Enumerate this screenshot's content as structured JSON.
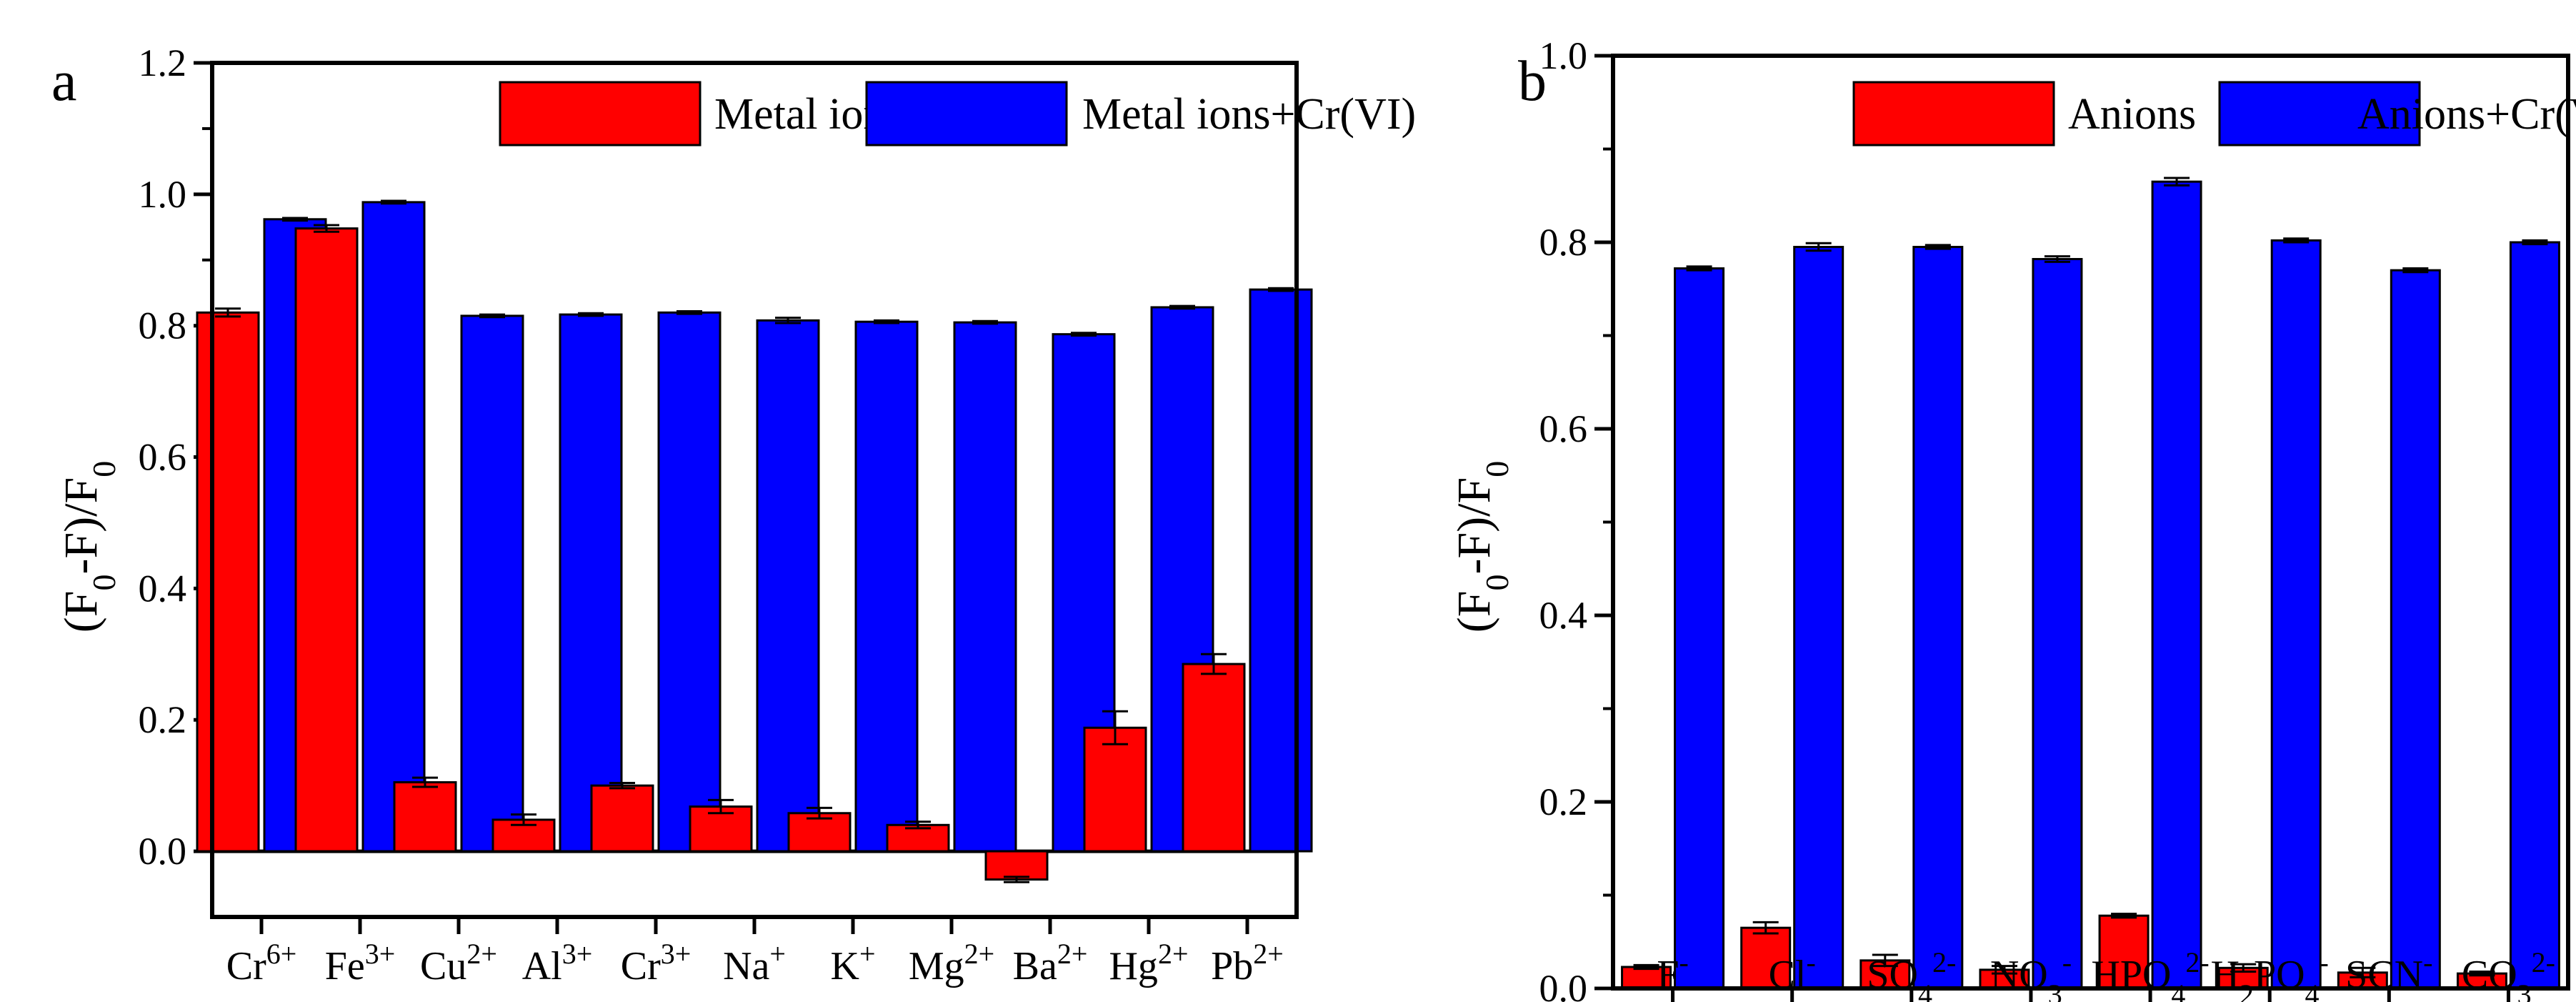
{
  "colors": {
    "series1": "#ff0000",
    "series2": "#0000ff",
    "axis": "#000000"
  },
  "chart_data": [
    {
      "type": "bar",
      "panel": "a",
      "ylabel": "(F0-F)/F0",
      "ylim": [
        -0.1,
        1.2
      ],
      "yticks": [
        0.0,
        0.2,
        0.4,
        0.6,
        0.8,
        1.0,
        1.2
      ],
      "ytick_labels": [
        "0.0",
        "0.2",
        "0.4",
        "0.6",
        "0.8",
        "1.0",
        "1.2"
      ],
      "legend_position": "top-right",
      "categories": [
        {
          "base": "Cr",
          "sup": "6+"
        },
        {
          "base": "Fe",
          "sup": "3+"
        },
        {
          "base": "Cu",
          "sup": "2+"
        },
        {
          "base": "Al",
          "sup": "3+"
        },
        {
          "base": "Cr",
          "sup": "3+"
        },
        {
          "base": "Na",
          "sup": "+"
        },
        {
          "base": "K",
          "sup": "+"
        },
        {
          "base": "Mg",
          "sup": "2+"
        },
        {
          "base": "Ba",
          "sup": "2+"
        },
        {
          "base": "Hg",
          "sup": "2+"
        },
        {
          "base": "Pb",
          "sup": "2+"
        }
      ],
      "series": [
        {
          "name": "Metal ions",
          "color": "#ff0000",
          "values": [
            0.82,
            0.948,
            0.105,
            0.048,
            0.1,
            0.068,
            0.058,
            0.04,
            -0.043,
            0.188,
            0.285
          ],
          "errors": [
            0.006,
            0.005,
            0.007,
            0.008,
            0.004,
            0.01,
            0.008,
            0.005,
            0.004,
            0.025,
            0.015
          ]
        },
        {
          "name": "Metal ions+Cr(VI)",
          "color": "#0000ff",
          "values": [
            0.962,
            0.988,
            0.815,
            0.817,
            0.82,
            0.808,
            0.806,
            0.805,
            0.787,
            0.828,
            0.855
          ],
          "errors": [
            0.002,
            0.002,
            0.002,
            0.002,
            0.002,
            0.004,
            0.002,
            0.002,
            0.002,
            0.002,
            0.002
          ]
        }
      ]
    },
    {
      "type": "bar",
      "panel": "b",
      "ylabel": "(F0-F)/F0",
      "ylim": [
        0.0,
        1.0
      ],
      "yticks": [
        0.0,
        0.2,
        0.4,
        0.6,
        0.8,
        1.0
      ],
      "ytick_labels": [
        "0.0",
        "0.2",
        "0.4",
        "0.6",
        "0.8",
        "1.0"
      ],
      "legend_position": "top-right",
      "categories": [
        [
          {
            "t": "F"
          },
          {
            "t": "-",
            "p": "sup"
          }
        ],
        [
          {
            "t": "Cl"
          },
          {
            "t": "-",
            "p": "sup"
          }
        ],
        [
          {
            "t": "SO"
          },
          {
            "t": "4",
            "p": "sub"
          },
          {
            "t": "2-",
            "p": "sup"
          }
        ],
        [
          {
            "t": "NO"
          },
          {
            "t": "3",
            "p": "sub"
          },
          {
            "t": "-",
            "p": "sup"
          }
        ],
        [
          {
            "t": "HPO"
          },
          {
            "t": "4",
            "p": "sub"
          },
          {
            "t": "2-",
            "p": "sup"
          }
        ],
        [
          {
            "t": "H"
          },
          {
            "t": "2",
            "p": "sub"
          },
          {
            "t": "PO"
          },
          {
            "t": "4",
            "p": "sub"
          },
          {
            "t": "-",
            "p": "sup"
          }
        ],
        [
          {
            "t": "SCN"
          },
          {
            "t": "-",
            "p": "sup"
          }
        ],
        [
          {
            "t": "CO"
          },
          {
            "t": "3",
            "p": "sub"
          },
          {
            "t": "2-",
            "p": "sup"
          }
        ]
      ],
      "series": [
        {
          "name": "Anions",
          "color": "#ff0000",
          "values": [
            0.023,
            0.065,
            0.03,
            0.02,
            0.078,
            0.022,
            0.017,
            0.016
          ],
          "errors": [
            0.002,
            0.006,
            0.006,
            0.004,
            0.002,
            0.004,
            0.005,
            0.002
          ]
        },
        {
          "name": "Anions+Cr(VI)",
          "color": "#0000ff",
          "values": [
            0.772,
            0.795,
            0.795,
            0.782,
            0.865,
            0.802,
            0.77,
            0.8
          ],
          "errors": [
            0.002,
            0.004,
            0.002,
            0.003,
            0.004,
            0.002,
            0.002,
            0.002
          ]
        }
      ]
    }
  ]
}
